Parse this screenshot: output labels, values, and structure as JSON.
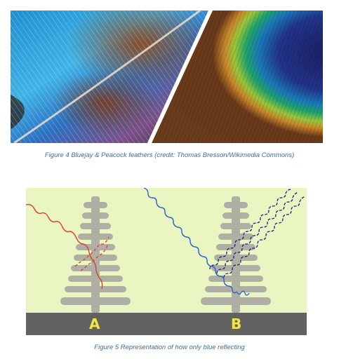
{
  "figure4": {
    "caption": "Figure 4 Bluejay & Peacock feathers (credit: Thomas Bresson/Wikimedia Commons)",
    "caption_color": "#3a6ea5"
  },
  "figure5": {
    "caption": "Figure 5 Representation of how only blue reflecting",
    "caption_color": "#3a6ea5",
    "panels": [
      {
        "label": "A",
        "label_color": "#f2e640"
      },
      {
        "label": "B",
        "label_color": "#f2e640"
      }
    ],
    "background_color": "#eaf6c2",
    "ground_color": "#626262",
    "red_light_color": "#d8402c",
    "blue_light_color": "#3060c8",
    "dark_blue_light_color": "#1a237e"
  }
}
